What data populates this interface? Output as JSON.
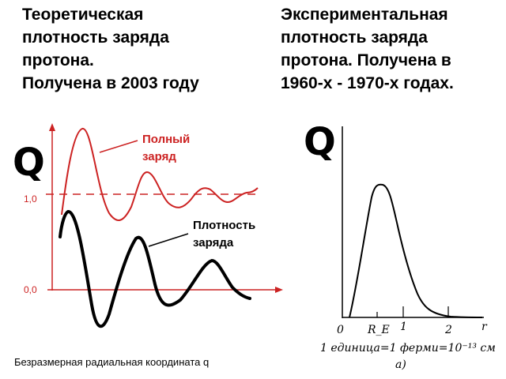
{
  "left": {
    "title": "Теоретическая\nплотность заряда\nпротона.\nПолучена в 2003 году",
    "q_label": "Q",
    "y_ticks": [
      "1,0",
      "0,0"
    ],
    "total_charge_label": [
      "Полный",
      "заряд"
    ],
    "density_label": [
      "Плотность",
      "заряда"
    ],
    "x_caption": "Безразмерная радиальная координата q",
    "colors": {
      "total_charge": "#cc2222",
      "density": "#000000",
      "axis": "#cc2222"
    }
  },
  "right": {
    "title": "Экспериментальная\nплотность заряда\nпротона. Получена в\n1960-х - 1970-х годах.",
    "q_label": "Q",
    "x_ticks": [
      "0",
      "R_E",
      "1",
      "2"
    ],
    "x_axis_symbol": "r",
    "unit_note": "1 единица=1 ферми=10⁻¹³ см",
    "panel_letter": "а)"
  }
}
